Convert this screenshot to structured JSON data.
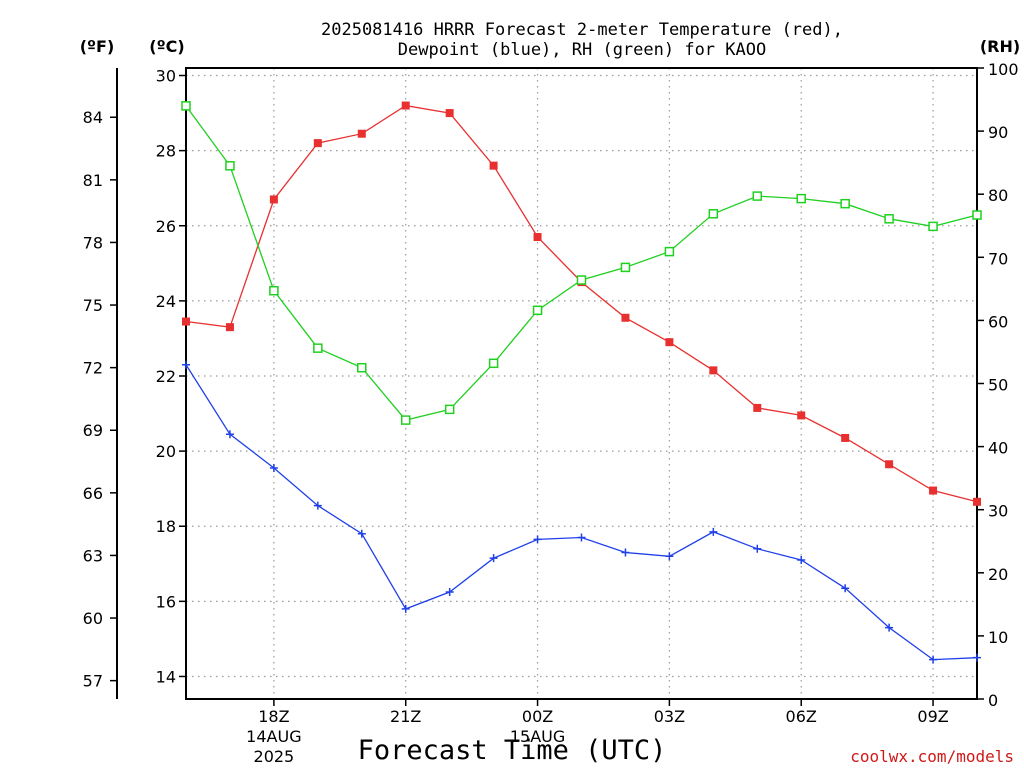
{
  "title": {
    "line1": "2025081416 HRRR Forecast 2-meter Temperature (red),",
    "line2": "Dewpoint (blue), RH (green) for KAOO"
  },
  "units": {
    "fahrenheit": "(ºF)",
    "celsius": "(ºC)",
    "rh": "(RH)"
  },
  "credit": "coolwx.com/models",
  "colors": {
    "temperature": "#e83030",
    "dewpoint": "#2040e8",
    "rh": "#20d020",
    "grid": "#9a9a9a"
  },
  "chart_data": {
    "type": "line",
    "title": "2025081416 HRRR Forecast 2-meter Temperature (red), Dewpoint (blue), RH (green) for KAOO",
    "xlabel": "Forecast Time (UTC)",
    "x_ticks": [
      {
        "hour": 18,
        "label": "18Z",
        "sub1": "14AUG",
        "sub2": "2025"
      },
      {
        "hour": 21,
        "label": "21Z",
        "sub1": "",
        "sub2": ""
      },
      {
        "hour": 24,
        "label": "00Z",
        "sub1": "15AUG",
        "sub2": ""
      },
      {
        "hour": 27,
        "label": "03Z",
        "sub1": "",
        "sub2": ""
      },
      {
        "hour": 30,
        "label": "06Z",
        "sub1": "",
        "sub2": ""
      },
      {
        "hour": 33,
        "label": "09Z",
        "sub1": "",
        "sub2": ""
      }
    ],
    "xlim": [
      16,
      34
    ],
    "hours": [
      16,
      17,
      18,
      19,
      20,
      21,
      22,
      23,
      24,
      25,
      26,
      27,
      28,
      29,
      30,
      31,
      32,
      33,
      34
    ],
    "ylim_celsius": [
      13.4,
      30.2
    ],
    "y_ticks_celsius": [
      14,
      16,
      18,
      20,
      22,
      24,
      26,
      28,
      30
    ],
    "y_ticks_fahrenheit": [
      57,
      60,
      63,
      66,
      69,
      72,
      75,
      78,
      81,
      84
    ],
    "ylim_rh": [
      0,
      100
    ],
    "y_ticks_rh": [
      0,
      10,
      20,
      30,
      40,
      50,
      60,
      70,
      80,
      90,
      100
    ],
    "grid": true,
    "series": [
      {
        "name": "Temperature",
        "axis": "celsius",
        "marker": "filled-square",
        "values": [
          23.45,
          23.3,
          26.7,
          28.2,
          28.45,
          29.2,
          29.0,
          27.6,
          25.7,
          24.5,
          23.55,
          22.9,
          22.15,
          21.15,
          20.95,
          20.35,
          19.65,
          18.95,
          18.65
        ]
      },
      {
        "name": "Dewpoint",
        "axis": "celsius",
        "marker": "plus",
        "values": [
          22.3,
          20.45,
          19.55,
          18.55,
          17.8,
          15.8,
          16.25,
          17.15,
          17.65,
          17.7,
          17.3,
          17.2,
          17.85,
          17.4,
          17.1,
          16.35,
          15.3,
          14.45,
          14.5
        ]
      },
      {
        "name": "RH",
        "axis": "rh",
        "marker": "open-square",
        "values": [
          94,
          84.5,
          64.7,
          55.6,
          52.5,
          44.2,
          45.9,
          53.2,
          61.6,
          66.4,
          68.4,
          70.9,
          76.9,
          79.7,
          79.3,
          78.5,
          76.1,
          74.9,
          76.7
        ]
      }
    ]
  }
}
